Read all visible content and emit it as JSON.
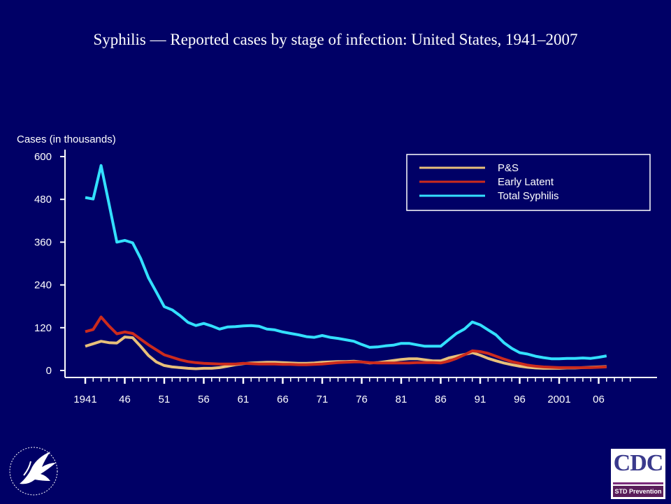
{
  "chart_data": {
    "type": "line",
    "title": "Syphilis — Reported cases by stage of infection: United States, 1941–2007",
    "ylabel": "Cases (in thousands)",
    "xlabel": "",
    "ylim": [
      0,
      600
    ],
    "xlim": [
      1941,
      2010
    ],
    "y_ticks": [
      0,
      120,
      240,
      360,
      480,
      600
    ],
    "x_tick_labels": [
      {
        "year": 1941,
        "label": "1941"
      },
      {
        "year": 1946,
        "label": "46"
      },
      {
        "year": 1951,
        "label": "51"
      },
      {
        "year": 1956,
        "label": "56"
      },
      {
        "year": 1961,
        "label": "61"
      },
      {
        "year": 1966,
        "label": "66"
      },
      {
        "year": 1971,
        "label": "71"
      },
      {
        "year": 1976,
        "label": "76"
      },
      {
        "year": 1981,
        "label": "81"
      },
      {
        "year": 1986,
        "label": "86"
      },
      {
        "year": 1991,
        "label": "91"
      },
      {
        "year": 1996,
        "label": "96"
      },
      {
        "year": 2001,
        "label": "2001"
      },
      {
        "year": 2006,
        "label": "06"
      }
    ],
    "legend_position": "top-right",
    "x": [
      1941,
      1942,
      1943,
      1944,
      1945,
      1946,
      1947,
      1948,
      1949,
      1950,
      1951,
      1952,
      1953,
      1954,
      1955,
      1956,
      1957,
      1958,
      1959,
      1960,
      1961,
      1962,
      1963,
      1964,
      1965,
      1966,
      1967,
      1968,
      1969,
      1970,
      1971,
      1972,
      1973,
      1974,
      1975,
      1976,
      1977,
      1978,
      1979,
      1980,
      1981,
      1982,
      1983,
      1984,
      1985,
      1986,
      1987,
      1988,
      1989,
      1990,
      1991,
      1992,
      1993,
      1994,
      1995,
      1996,
      1997,
      1998,
      1999,
      2000,
      2001,
      2002,
      2003,
      2004,
      2005,
      2006,
      2007
    ],
    "series": [
      {
        "name": "P&S",
        "color": "#e8c07a",
        "values": [
          68,
          75,
          82,
          78,
          77,
          94,
          92,
          68,
          42,
          24,
          14,
          10,
          8,
          6,
          5,
          6,
          6,
          8,
          12,
          16,
          19,
          21,
          22,
          23,
          23,
          22,
          21,
          20,
          20,
          21,
          23,
          24,
          25,
          25,
          26,
          24,
          21,
          22,
          25,
          28,
          31,
          33,
          33,
          30,
          27,
          27,
          35,
          40,
          45,
          50,
          43,
          34,
          27,
          21,
          16,
          12,
          9,
          7,
          6,
          6,
          6,
          7,
          7,
          8,
          9,
          10,
          11
        ]
      },
      {
        "name": "Early Latent",
        "color": "#cc2b1d",
        "values": [
          109,
          115,
          150,
          125,
          103,
          108,
          104,
          88,
          72,
          58,
          44,
          37,
          30,
          25,
          22,
          20,
          19,
          18,
          18,
          18,
          20,
          19,
          18,
          18,
          18,
          17,
          17,
          16,
          16,
          17,
          18,
          20,
          22,
          23,
          24,
          24,
          22,
          21,
          21,
          21,
          21,
          21,
          22,
          22,
          22,
          21,
          26,
          34,
          44,
          55,
          53,
          48,
          40,
          32,
          25,
          20,
          15,
          12,
          10,
          9,
          8,
          8,
          8,
          8,
          8,
          9,
          10
        ]
      },
      {
        "name": "Total Syphilis",
        "color": "#33e0ff",
        "values": [
          485,
          481,
          575,
          468,
          360,
          365,
          358,
          315,
          260,
          220,
          179,
          170,
          154,
          135,
          126,
          132,
          125,
          116,
          122,
          123,
          125,
          126,
          124,
          116,
          114,
          108,
          104,
          100,
          95,
          93,
          98,
          93,
          90,
          86,
          82,
          73,
          65,
          66,
          69,
          71,
          76,
          76,
          72,
          68,
          68,
          68,
          86,
          104,
          116,
          136,
          128,
          114,
          100,
          78,
          62,
          50,
          46,
          40,
          36,
          33,
          33,
          34,
          34,
          35,
          34,
          37,
          41
        ]
      }
    ]
  },
  "logos": {
    "hhs_icon": "hhs-eagle-seal-icon",
    "cdc_text": "CDC",
    "cdc_subtitle": "STD Prevention"
  },
  "colors": {
    "background": "#000066",
    "text": "#ffffff"
  }
}
